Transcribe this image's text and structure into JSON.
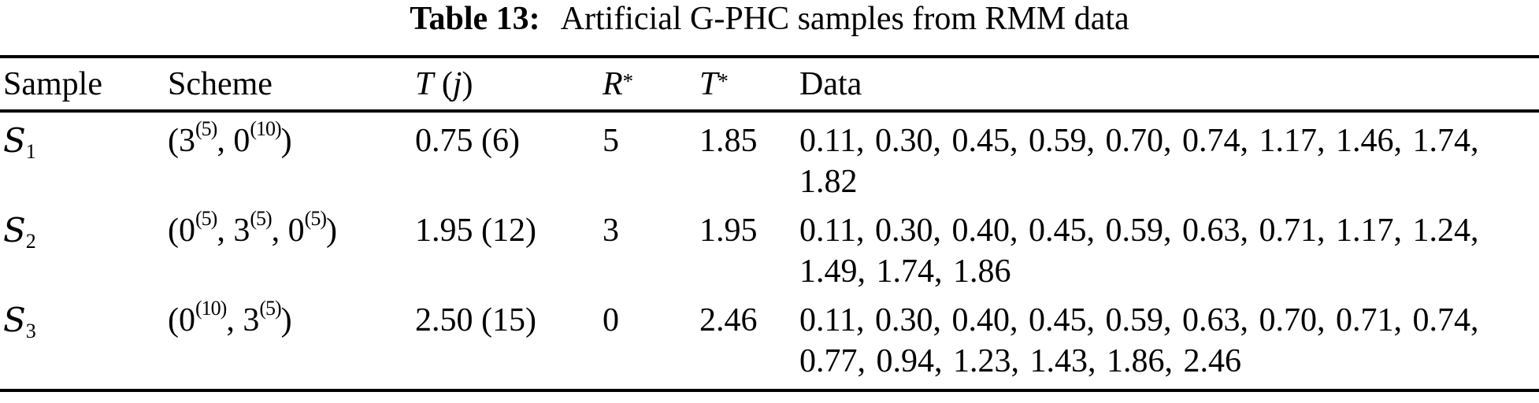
{
  "title": {
    "label": "Table 13:",
    "text": "Artificial G-PHC samples from RMM data"
  },
  "table": {
    "headers": {
      "sample": "Sample",
      "scheme": "Scheme",
      "tj": {
        "t": "T",
        "open": " (",
        "j": "j",
        "close": ")"
      },
      "r_star": {
        "letter": "R",
        "sup": "*"
      },
      "t_star": {
        "letter": "T",
        "sup": "*"
      },
      "data": "Data"
    },
    "rows": [
      {
        "sample": {
          "letter": "S",
          "sub": "1"
        },
        "scheme": {
          "s0": "(3",
          "s1": "(5)",
          "s2": ", 0",
          "s3": "(10)",
          "s4": ")"
        },
        "tj": "0.75 (6)",
        "r_star": "5",
        "t_star": "1.85",
        "data_lines": {
          "l1": "0.11, 0.30, 0.45, 0.59, 0.70, 0.74, 1.17, 1.46, 1.74,",
          "l2": "1.82"
        }
      },
      {
        "sample": {
          "letter": "S",
          "sub": "2"
        },
        "scheme": {
          "s0": "(0",
          "s1": "(5)",
          "s2": ", 3",
          "s3": "(5)",
          "s4": ", 0",
          "s5": "(5)",
          "s6": ")"
        },
        "tj": "1.95 (12)",
        "r_star": "3",
        "t_star": "1.95",
        "data_lines": {
          "l1": "0.11, 0.30, 0.40, 0.45, 0.59, 0.63, 0.71, 1.17, 1.24,",
          "l2": "1.49, 1.74, 1.86"
        }
      },
      {
        "sample": {
          "letter": "S",
          "sub": "3"
        },
        "scheme": {
          "s0": "(0",
          "s1": "(10)",
          "s2": ", 3",
          "s3": "(5)",
          "s4": ")"
        },
        "tj": "2.50 (15)",
        "r_star": "0",
        "t_star": "2.46",
        "data_lines": {
          "l1": "0.11, 0.30, 0.40, 0.45, 0.59, 0.63, 0.70, 0.71, 0.74,",
          "l2": "0.77, 0.94, 1.23, 1.43, 1.86, 2.46"
        }
      }
    ]
  }
}
